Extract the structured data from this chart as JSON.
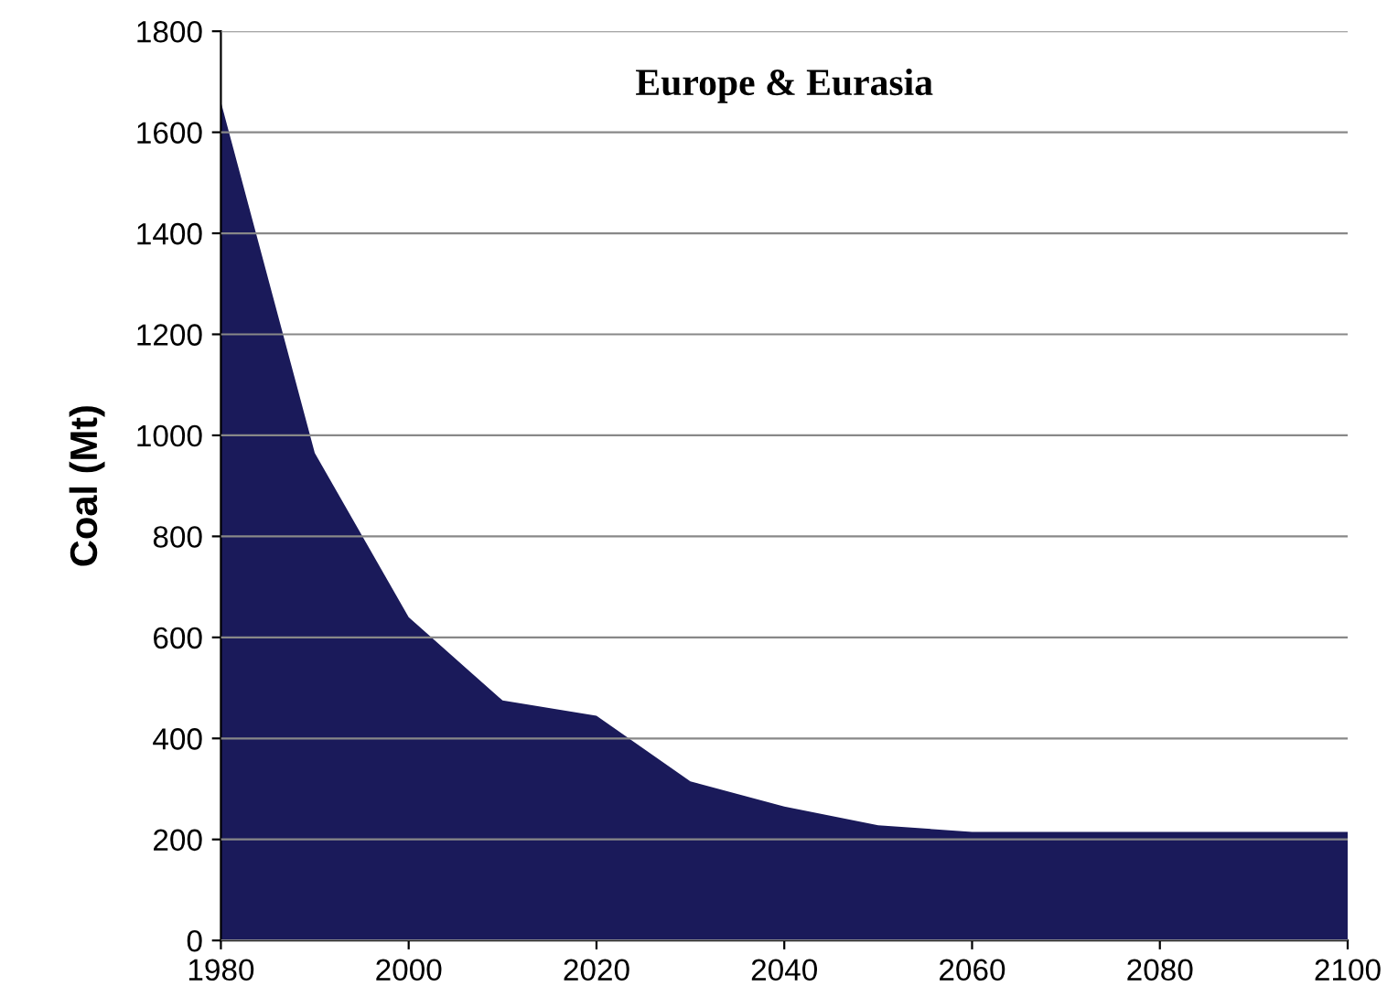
{
  "chart_data": {
    "type": "area",
    "title": "Europe & Eurasia",
    "ylabel": "Coal (Mt)",
    "x": [
      1980,
      1990,
      2000,
      2010,
      2020,
      2030,
      2040,
      2050,
      2060,
      2070,
      2080,
      2090,
      2100
    ],
    "series": [
      {
        "color": "#1a1a5a",
        "values": [
          1660,
          965,
          640,
          475,
          445,
          315,
          265,
          228,
          215,
          215,
          215,
          215,
          215
        ]
      }
    ],
    "xlim": [
      1980,
      2100
    ],
    "xticks": [
      1980,
      2000,
      2020,
      2040,
      2060,
      2080,
      2100
    ],
    "ylim": [
      0,
      1800
    ],
    "yticks": [
      0,
      200,
      400,
      600,
      800,
      1000,
      1200,
      1400,
      1600,
      1800
    ],
    "grid": "y",
    "legend": false
  }
}
